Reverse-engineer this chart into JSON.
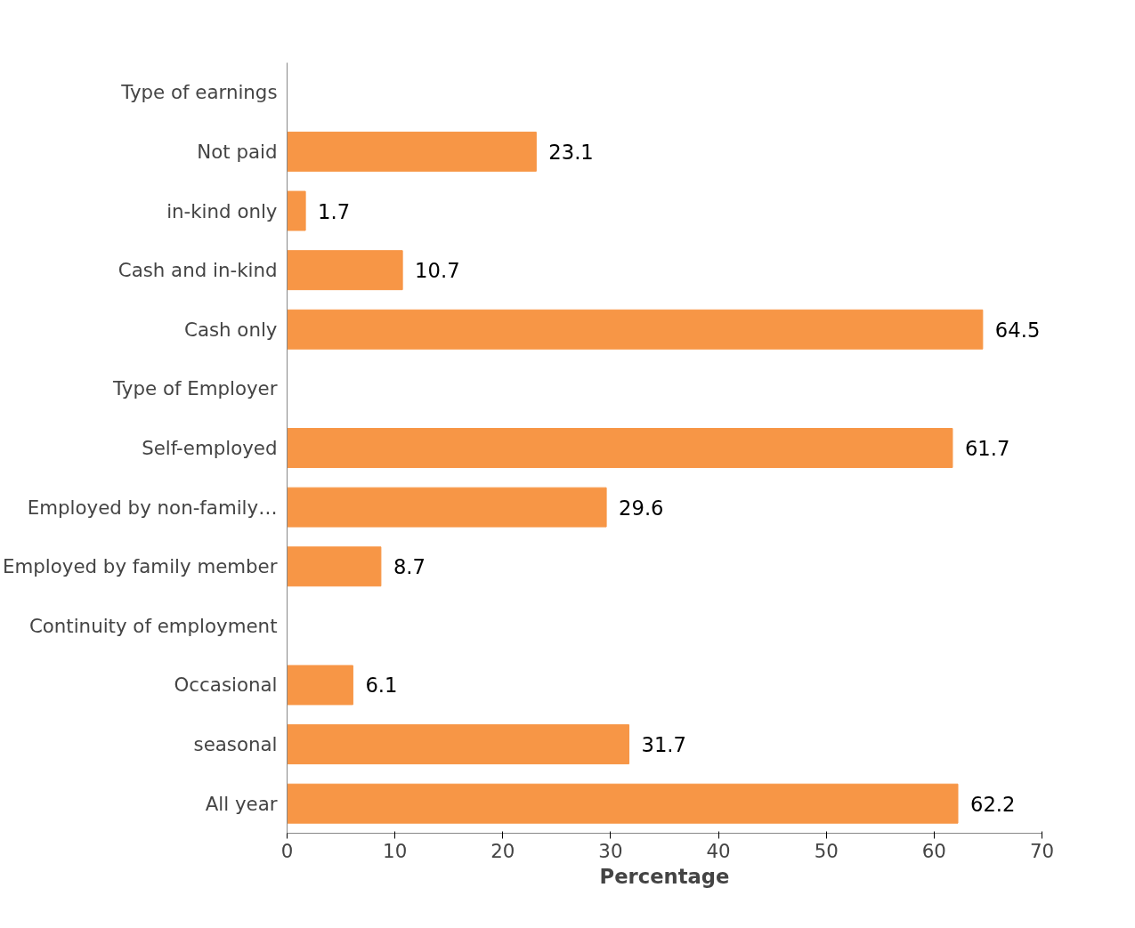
{
  "chart_data": {
    "type": "bar",
    "orientation": "horizontal",
    "xlabel": "Percentage",
    "categories": [
      "Type of earnings",
      "Not paid",
      "in-kind only",
      "Cash and in-kind",
      "Cash only",
      "Type of Employer",
      "Self-employed",
      "Employed by non-family…",
      "Employed by family member",
      "Continuity of employment",
      "Occasional",
      "seasonal",
      "All year"
    ],
    "values": [
      null,
      23.1,
      1.7,
      10.7,
      64.5,
      null,
      61.7,
      29.6,
      8.7,
      null,
      6.1,
      31.7,
      62.2
    ],
    "color": "#f79646",
    "xlim": [
      0,
      70
    ],
    "xticks": [
      0,
      10,
      20,
      30,
      40,
      50,
      60,
      70
    ],
    "data_labels": true,
    "grid": false
  }
}
